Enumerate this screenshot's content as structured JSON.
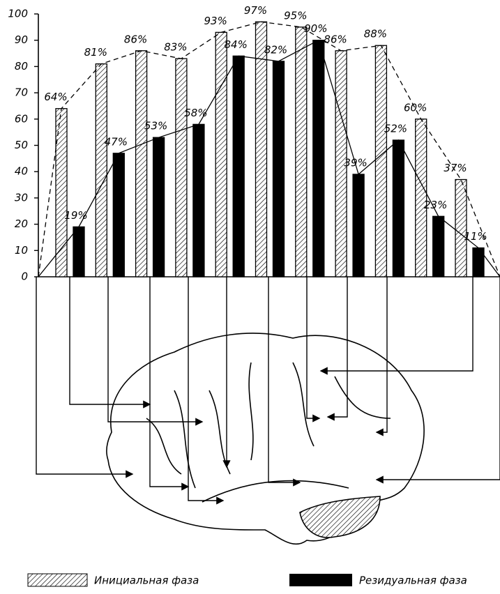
{
  "chart_data": {
    "type": "bar",
    "categories": [
      null,
      null,
      null,
      null,
      null,
      null,
      null,
      null,
      null,
      null,
      null
    ],
    "series": [
      {
        "name": "Инициальная фаза",
        "color": "#000000",
        "fill": "hatch",
        "values": [
          64,
          81,
          86,
          83,
          93,
          97,
          95,
          86,
          88,
          60,
          37
        ],
        "value_labels": [
          "64%",
          "81%",
          "86%",
          "83%",
          "93%",
          "97%",
          "95%",
          "86%",
          "88%",
          "60%",
          "37%"
        ]
      },
      {
        "name": "Резидуальная фаза",
        "color": "#000000",
        "fill": "solid",
        "values": [
          19,
          47,
          53,
          58,
          84,
          82,
          90,
          39,
          52,
          23,
          11
        ],
        "value_labels": [
          "19%",
          "47%",
          "53%",
          "58%",
          "84%",
          "82%",
          "90%",
          "39%",
          "52%",
          "23%",
          "11%"
        ]
      }
    ],
    "ylim": [
      0,
      100
    ],
    "yticks": [
      0,
      10,
      20,
      30,
      40,
      50,
      60,
      70,
      80,
      90,
      100
    ],
    "grid": false
  }
}
